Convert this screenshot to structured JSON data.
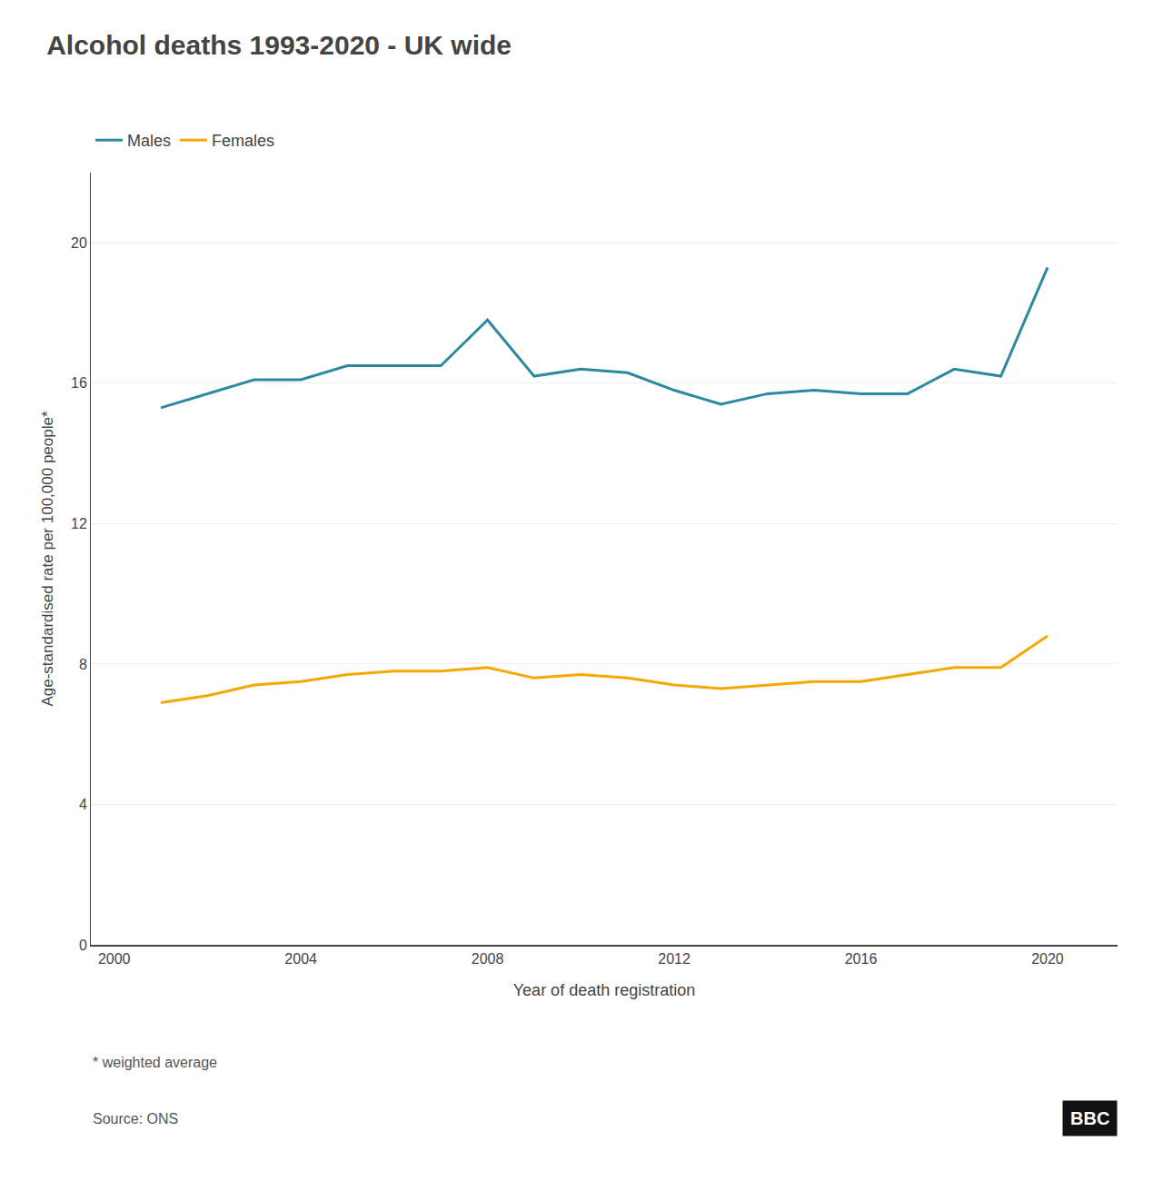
{
  "chart_data": {
    "type": "line",
    "title": "Alcohol deaths 1993-2020 - UK wide",
    "xlabel": "Year of death registration",
    "ylabel": "Age-standardised rate per 100,000 people*",
    "annotations": [
      "* weighted average",
      "Source: ONS",
      "BBC"
    ],
    "x": [
      2001,
      2002,
      2003,
      2004,
      2005,
      2006,
      2007,
      2008,
      2009,
      2010,
      2011,
      2012,
      2013,
      2014,
      2015,
      2016,
      2017,
      2018,
      2019,
      2020
    ],
    "series": [
      {
        "name": "Males",
        "color": "#2b8a9f",
        "values": [
          15.3,
          15.7,
          16.1,
          16.1,
          16.5,
          16.5,
          16.5,
          17.8,
          16.2,
          16.4,
          16.3,
          15.8,
          15.4,
          15.7,
          15.8,
          15.7,
          15.7,
          16.4,
          16.2,
          19.3
        ]
      },
      {
        "name": "Females",
        "color": "#f5a800",
        "values": [
          6.9,
          7.1,
          7.4,
          7.5,
          7.7,
          7.8,
          7.8,
          7.9,
          7.6,
          7.7,
          7.6,
          7.4,
          7.3,
          7.4,
          7.5,
          7.5,
          7.7,
          7.9,
          7.9,
          8.8
        ]
      }
    ],
    "xlim": [
      1999.5,
      2021.5
    ],
    "xticks": [
      2000,
      2004,
      2008,
      2012,
      2016,
      2020
    ],
    "ylim": [
      0,
      22
    ],
    "yticks": [
      0,
      4,
      8,
      12,
      16,
      20
    ],
    "grid": true,
    "legend": "top left"
  }
}
